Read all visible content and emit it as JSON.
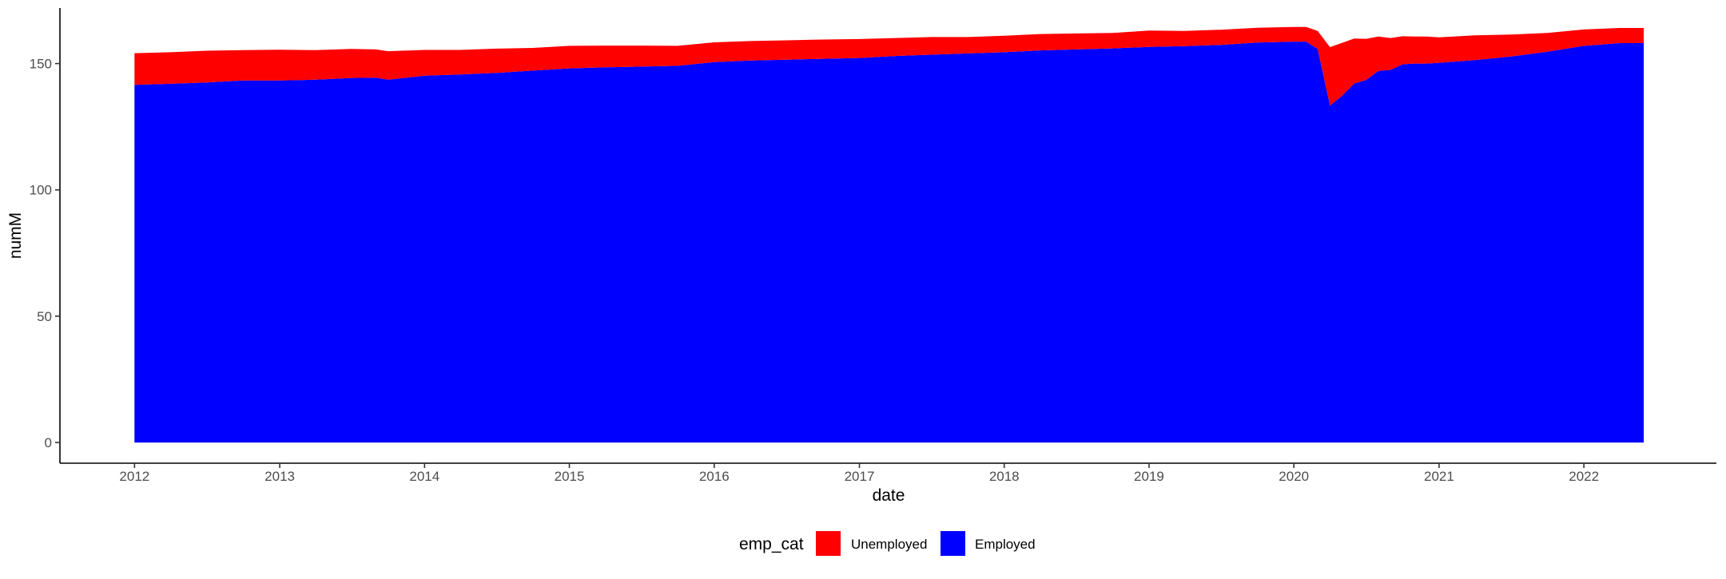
{
  "chart_data": {
    "type": "area",
    "stacked": true,
    "xlabel": "date",
    "ylabel": "numM",
    "xlim": [
      "2011-06-27",
      "2022-12-01"
    ],
    "ylim": [
      -8.2,
      172
    ],
    "x_ticks": [
      "2012",
      "2013",
      "2014",
      "2015",
      "2016",
      "2017",
      "2018",
      "2019",
      "2020",
      "2021",
      "2022"
    ],
    "y_ticks": [
      0,
      50,
      100,
      150
    ],
    "grid": false,
    "legend": {
      "title": "emp_cat",
      "placement": "bottom",
      "entries": [
        {
          "label": "Unemployed",
          "color": "#FF0000"
        },
        {
          "label": "Employed",
          "color": "#0000FF"
        }
      ]
    },
    "x": [
      "2012-01",
      "2012-04",
      "2012-07",
      "2012-10",
      "2013-01",
      "2013-04",
      "2013-07",
      "2013-09",
      "2013-10",
      "2014-01",
      "2014-04",
      "2014-07",
      "2014-10",
      "2015-01",
      "2015-04",
      "2015-07",
      "2015-10",
      "2016-01",
      "2016-04",
      "2016-07",
      "2016-10",
      "2017-01",
      "2017-04",
      "2017-07",
      "2017-10",
      "2018-01",
      "2018-04",
      "2018-07",
      "2018-10",
      "2019-01",
      "2019-04",
      "2019-07",
      "2019-10",
      "2020-01",
      "2020-02",
      "2020-03",
      "2020-04",
      "2020-05",
      "2020-06",
      "2020-07",
      "2020-08",
      "2020-09",
      "2020-10",
      "2020-11",
      "2020-12",
      "2021-01",
      "2021-04",
      "2021-07",
      "2021-10",
      "2022-01",
      "2022-04",
      "2022-06"
    ],
    "series": [
      {
        "name": "Employed",
        "color": "#0000FF",
        "values": [
          141.6,
          142.0,
          142.5,
          143.3,
          143.3,
          143.6,
          144.3,
          144.4,
          143.6,
          145.2,
          145.7,
          146.3,
          147.2,
          148.1,
          148.5,
          148.8,
          149.1,
          150.6,
          151.2,
          151.5,
          151.9,
          152.2,
          153.0,
          153.5,
          154.0,
          154.5,
          155.2,
          155.6,
          156.0,
          156.6,
          156.9,
          157.4,
          158.3,
          158.7,
          158.7,
          155.8,
          133.4,
          137.2,
          142.1,
          143.5,
          147.1,
          147.5,
          149.7,
          150.0,
          150.0,
          150.3,
          151.4,
          152.8,
          154.7,
          157.0,
          158.1,
          158.1
        ]
      },
      {
        "name": "Unemployed",
        "color": "#FF0000",
        "values": [
          12.5,
          12.5,
          12.6,
          12.0,
          12.2,
          11.7,
          11.5,
          11.2,
          11.3,
          10.2,
          9.7,
          9.6,
          9.0,
          8.9,
          8.6,
          8.3,
          7.9,
          7.8,
          7.7,
          7.7,
          7.6,
          7.5,
          7.1,
          7.0,
          6.5,
          6.5,
          6.5,
          6.3,
          6.1,
          6.5,
          6.0,
          6.0,
          5.9,
          5.8,
          5.8,
          7.1,
          23.1,
          21.0,
          17.8,
          16.3,
          13.6,
          12.6,
          11.1,
          10.7,
          10.7,
          10.1,
          9.8,
          8.7,
          7.4,
          6.5,
          6.0,
          6.0
        ]
      }
    ]
  }
}
